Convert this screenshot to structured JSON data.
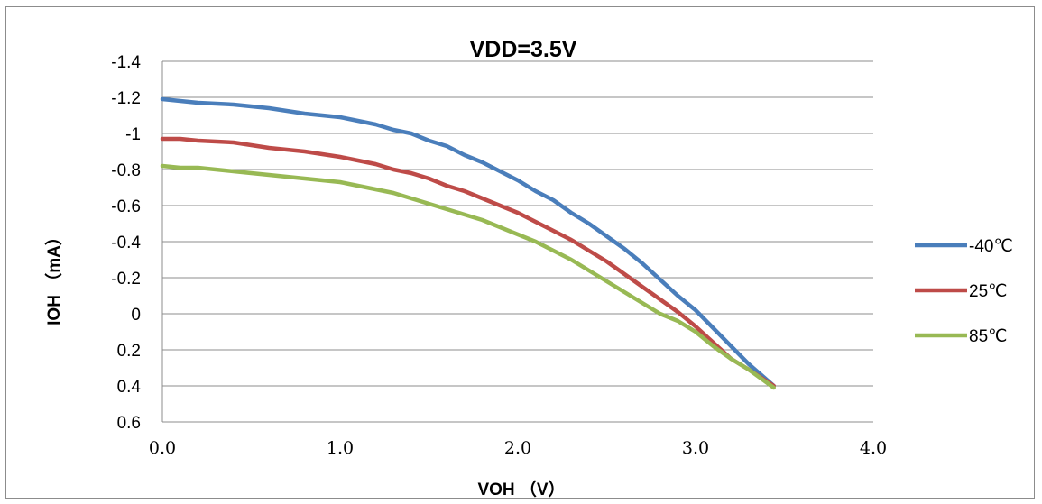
{
  "chart_data": {
    "type": "line",
    "title": "VDD=3.5V",
    "xlabel": "VOH （V）",
    "ylabel": "IOH （mA）",
    "xlim": [
      0,
      4
    ],
    "ylim": [
      -1.4,
      0.6
    ],
    "y_inverted": true,
    "grid": "horizontal",
    "legend_position": "right",
    "x_ticks": [
      {
        "value": 0,
        "label": "0.0"
      },
      {
        "value": 1,
        "label": "1.0"
      },
      {
        "value": 2,
        "label": "2.0"
      },
      {
        "value": 3,
        "label": "3.0"
      },
      {
        "value": 4,
        "label": "4.0"
      }
    ],
    "y_ticks": [
      {
        "value": -1.4,
        "label": "-1.4"
      },
      {
        "value": -1.2,
        "label": "-1.2"
      },
      {
        "value": -1.0,
        "label": "-1"
      },
      {
        "value": -0.8,
        "label": "-0.8"
      },
      {
        "value": -0.6,
        "label": "-0.6"
      },
      {
        "value": -0.4,
        "label": "-0.4"
      },
      {
        "value": -0.2,
        "label": "-0.2"
      },
      {
        "value": 0,
        "label": "0"
      },
      {
        "value": 0.2,
        "label": "0.2"
      },
      {
        "value": 0.4,
        "label": "0.4"
      },
      {
        "value": 0.6,
        "label": "0.6"
      }
    ],
    "series": [
      {
        "name": "-40℃",
        "color": "#4a7ebb",
        "x": [
          0,
          0.1,
          0.2,
          0.4,
          0.6,
          0.8,
          1.0,
          1.1,
          1.2,
          1.3,
          1.4,
          1.5,
          1.6,
          1.7,
          1.8,
          1.9,
          2.0,
          2.1,
          2.2,
          2.3,
          2.4,
          2.5,
          2.6,
          2.7,
          2.8,
          2.9,
          3.0,
          3.1,
          3.2,
          3.3,
          3.44
        ],
        "y": [
          -1.19,
          -1.18,
          -1.17,
          -1.16,
          -1.14,
          -1.11,
          -1.09,
          -1.07,
          -1.05,
          -1.02,
          -1.0,
          -0.96,
          -0.93,
          -0.88,
          -0.84,
          -0.79,
          -0.74,
          -0.68,
          -0.63,
          -0.56,
          -0.5,
          -0.43,
          -0.36,
          -0.28,
          -0.19,
          -0.1,
          -0.02,
          0.08,
          0.18,
          0.28,
          0.4
        ]
      },
      {
        "name": "25℃",
        "color": "#be4b48",
        "x": [
          0,
          0.1,
          0.2,
          0.4,
          0.6,
          0.8,
          1.0,
          1.1,
          1.2,
          1.3,
          1.4,
          1.5,
          1.6,
          1.7,
          1.8,
          1.9,
          2.0,
          2.1,
          2.2,
          2.3,
          2.4,
          2.5,
          2.6,
          2.7,
          2.8,
          2.9,
          3.0,
          3.1,
          3.2,
          3.3,
          3.44
        ],
        "y": [
          -0.97,
          -0.97,
          -0.96,
          -0.95,
          -0.92,
          -0.9,
          -0.87,
          -0.85,
          -0.83,
          -0.8,
          -0.78,
          -0.75,
          -0.71,
          -0.68,
          -0.64,
          -0.6,
          -0.56,
          -0.51,
          -0.46,
          -0.41,
          -0.35,
          -0.29,
          -0.22,
          -0.15,
          -0.08,
          -0.01,
          0.07,
          0.16,
          0.25,
          0.31,
          0.4
        ]
      },
      {
        "name": "85℃",
        "color": "#98b954",
        "x": [
          0,
          0.1,
          0.2,
          0.4,
          0.6,
          0.8,
          1.0,
          1.1,
          1.2,
          1.3,
          1.4,
          1.5,
          1.6,
          1.7,
          1.8,
          1.9,
          2.0,
          2.1,
          2.2,
          2.3,
          2.4,
          2.5,
          2.6,
          2.7,
          2.8,
          2.9,
          3.0,
          3.1,
          3.2,
          3.3,
          3.44
        ],
        "y": [
          -0.82,
          -0.81,
          -0.81,
          -0.79,
          -0.77,
          -0.75,
          -0.73,
          -0.71,
          -0.69,
          -0.67,
          -0.64,
          -0.61,
          -0.58,
          -0.55,
          -0.52,
          -0.48,
          -0.44,
          -0.4,
          -0.35,
          -0.3,
          -0.24,
          -0.18,
          -0.12,
          -0.06,
          0.0,
          0.04,
          0.1,
          0.18,
          0.25,
          0.31,
          0.41
        ]
      }
    ]
  }
}
